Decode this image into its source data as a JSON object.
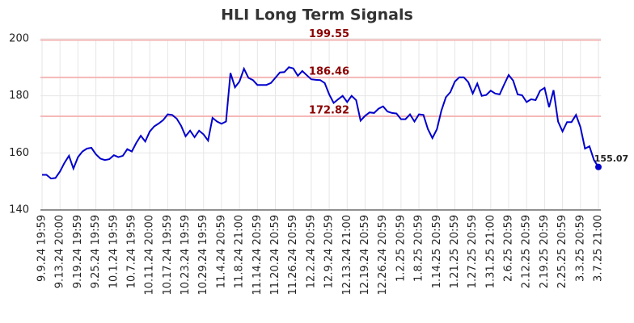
{
  "chart_data": {
    "type": "line",
    "title": "HLI Long Term Signals",
    "categories": [
      "9.9.24 19:59",
      null,
      null,
      null,
      "9.13.24 20:00",
      null,
      null,
      null,
      "9.19.24 19:59",
      null,
      null,
      null,
      "9.25.24 19:59",
      null,
      null,
      null,
      "10.1.24 19:59",
      null,
      null,
      null,
      "10.7.24 19:59",
      null,
      null,
      null,
      "10.11.24 20:00",
      null,
      null,
      null,
      "10.17.24 19:59",
      null,
      null,
      null,
      "10.23.24 19:59",
      null,
      null,
      null,
      "10.29.24 19:59",
      null,
      null,
      null,
      "11.4.24 20:59",
      null,
      null,
      null,
      "11.8.24 21:00",
      null,
      null,
      null,
      "11.14.24 20:59",
      null,
      null,
      null,
      "11.20.24 20:59",
      null,
      null,
      null,
      "11.26.24 20:59",
      null,
      null,
      null,
      "12.2.24 20:59",
      null,
      null,
      null,
      "12.9.24 20:59",
      null,
      null,
      null,
      "12.13.24 21:00",
      null,
      null,
      null,
      "12.19.24 20:59",
      null,
      null,
      null,
      "12.26.24 20:59",
      null,
      null,
      null,
      "1.2.25 20:59",
      null,
      null,
      null,
      "1.8.25 20:59",
      null,
      null,
      null,
      "1.14.25 20:59",
      null,
      null,
      null,
      "1.21.25 20:59",
      null,
      null,
      null,
      "1.27.25 20:59",
      null,
      null,
      null,
      "1.31.25 21:00",
      null,
      null,
      null,
      "2.6.25 20:59",
      null,
      null,
      null,
      "2.12.25 20:59",
      null,
      null,
      null,
      "2.19.25 20:59",
      null,
      null,
      null,
      "2.25.25 20:59",
      null,
      null,
      null,
      "3.3.25 20:59",
      null,
      null,
      null,
      "3.7.25 21:00"
    ],
    "values": [
      152.3,
      152.3,
      151,
      151.2,
      153.5,
      156.5,
      159,
      154.5,
      158.5,
      160.5,
      161.5,
      161.8,
      159.5,
      158,
      157.5,
      157.8,
      159.2,
      158.5,
      159,
      161.3,
      160.5,
      163.5,
      166,
      164,
      167.5,
      169.3,
      170.3,
      171.5,
      173.5,
      173.3,
      172,
      169.5,
      165.8,
      167.8,
      165.5,
      167.8,
      166.5,
      164.3,
      172.3,
      171,
      170.2,
      171,
      188,
      183,
      185,
      189.5,
      186.3,
      185.5,
      183.8,
      183.8,
      183.8,
      184.5,
      186.3,
      188.2,
      188.3,
      190,
      189.6,
      187,
      188.7,
      187.2,
      185.8,
      185.6,
      185.5,
      184.5,
      180.5,
      177.5,
      178.8,
      180,
      177.8,
      180,
      178.5,
      171.3,
      173,
      174.2,
      174,
      175.5,
      176.3,
      174.5,
      174,
      173.8,
      171.8,
      171.8,
      173.5,
      171,
      173.5,
      173.3,
      168.3,
      165.2,
      168.3,
      174.8,
      179.5,
      181.3,
      185,
      186.5,
      186.5,
      184.8,
      180.8,
      184.3,
      180,
      180.3,
      181.8,
      180.8,
      180.5,
      184,
      187.3,
      185.3,
      180.5,
      180.2,
      177.8,
      178.8,
      178.5,
      181.8,
      182.8,
      176,
      182,
      171,
      167.5,
      170.8,
      170.8,
      173.3,
      169,
      161.5,
      162.3,
      157.5,
      155.07
    ],
    "color": "#0000cc",
    "ylim": [
      140,
      200
    ],
    "yticks": [
      140,
      160,
      180,
      200
    ],
    "grid": true,
    "hlines": [
      199.55,
      186.46,
      172.82
    ],
    "hline_color": "#f5b8b8",
    "hline_label_color": "#8b0000"
  }
}
